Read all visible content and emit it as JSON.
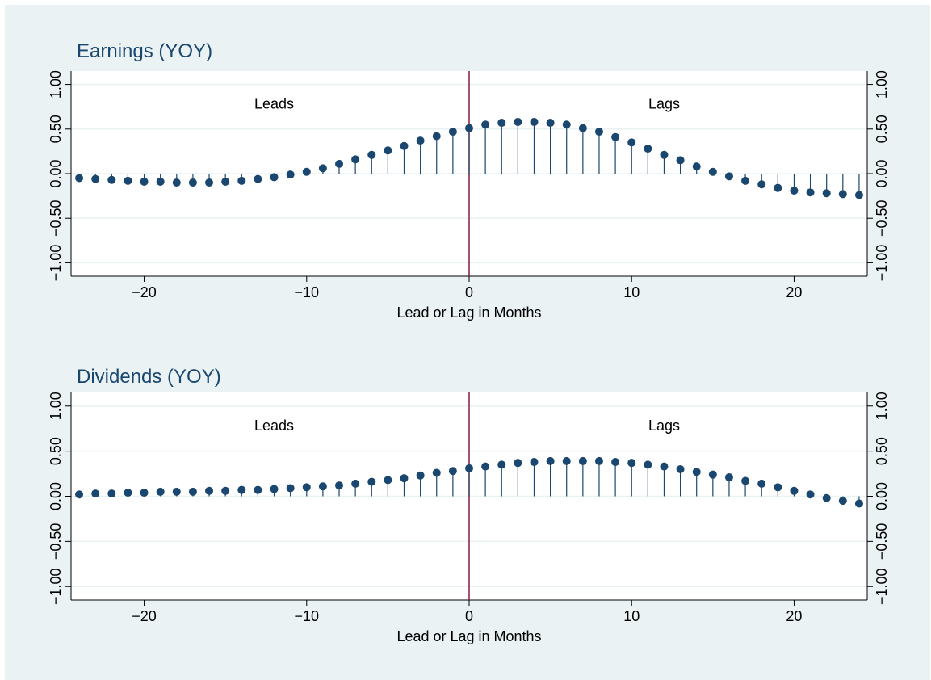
{
  "colors": {
    "background": "#eaf2f3",
    "plot_bg": "#ffffff",
    "marker": "#1a476f",
    "zero_line": "#8b1a3c",
    "grid": "#eaf2f3"
  },
  "chart_data": [
    {
      "type": "scatter",
      "style": "spike",
      "title": "Earnings (YOY)",
      "xlabel": "Lead or Lag in Months",
      "ylabel": "",
      "xlim": [
        -24.5,
        24.5
      ],
      "ylim": [
        -1.15,
        1.15
      ],
      "x_ticks": [
        -20,
        -10,
        0,
        10,
        20
      ],
      "x_tick_labels": [
        "−20",
        "−10",
        "0",
        "10",
        "20"
      ],
      "y_ticks": [
        -1,
        -0.5,
        0,
        0.5,
        1
      ],
      "y_tick_labels": [
        "−1.00",
        "−0.50",
        "0.00",
        "0.50",
        "1.00"
      ],
      "grid": true,
      "annotations": [
        {
          "text": "Leads",
          "x": -12,
          "y": 0.73
        },
        {
          "text": "Lags",
          "x": 12,
          "y": 0.73
        }
      ],
      "x": [
        -24,
        -23,
        -22,
        -21,
        -20,
        -19,
        -18,
        -17,
        -16,
        -15,
        -14,
        -13,
        -12,
        -11,
        -10,
        -9,
        -8,
        -7,
        -6,
        -5,
        -4,
        -3,
        -2,
        -1,
        0,
        1,
        2,
        3,
        4,
        5,
        6,
        7,
        8,
        9,
        10,
        11,
        12,
        13,
        14,
        15,
        16,
        17,
        18,
        19,
        20,
        21,
        22,
        23,
        24
      ],
      "y": [
        -0.05,
        -0.06,
        -0.07,
        -0.08,
        -0.09,
        -0.09,
        -0.1,
        -0.1,
        -0.1,
        -0.09,
        -0.08,
        -0.06,
        -0.04,
        -0.01,
        0.02,
        0.06,
        0.11,
        0.16,
        0.21,
        0.26,
        0.31,
        0.37,
        0.42,
        0.47,
        0.51,
        0.55,
        0.57,
        0.58,
        0.58,
        0.57,
        0.55,
        0.51,
        0.47,
        0.41,
        0.35,
        0.28,
        0.21,
        0.15,
        0.08,
        0.02,
        -0.03,
        -0.08,
        -0.12,
        -0.16,
        -0.19,
        -0.21,
        -0.22,
        -0.23,
        -0.24
      ]
    },
    {
      "type": "scatter",
      "style": "spike",
      "title": "Dividends (YOY)",
      "xlabel": "Lead or Lag in Months",
      "ylabel": "",
      "xlim": [
        -24.5,
        24.5
      ],
      "ylim": [
        -1.15,
        1.15
      ],
      "x_ticks": [
        -20,
        -10,
        0,
        10,
        20
      ],
      "x_tick_labels": [
        "−20",
        "−10",
        "0",
        "10",
        "20"
      ],
      "y_ticks": [
        -1,
        -0.5,
        0,
        0.5,
        1
      ],
      "y_tick_labels": [
        "−1.00",
        "−0.50",
        "0.00",
        "0.50",
        "1.00"
      ],
      "grid": true,
      "annotations": [
        {
          "text": "Leads",
          "x": -12,
          "y": 0.73
        },
        {
          "text": "Lags",
          "x": 12,
          "y": 0.73
        }
      ],
      "x": [
        -24,
        -23,
        -22,
        -21,
        -20,
        -19,
        -18,
        -17,
        -16,
        -15,
        -14,
        -13,
        -12,
        -11,
        -10,
        -9,
        -8,
        -7,
        -6,
        -5,
        -4,
        -3,
        -2,
        -1,
        0,
        1,
        2,
        3,
        4,
        5,
        6,
        7,
        8,
        9,
        10,
        11,
        12,
        13,
        14,
        15,
        16,
        17,
        18,
        19,
        20,
        21,
        22,
        23,
        24
      ],
      "y": [
        0.02,
        0.03,
        0.03,
        0.04,
        0.04,
        0.05,
        0.05,
        0.05,
        0.06,
        0.06,
        0.07,
        0.07,
        0.08,
        0.09,
        0.1,
        0.11,
        0.12,
        0.14,
        0.16,
        0.18,
        0.2,
        0.23,
        0.26,
        0.28,
        0.31,
        0.33,
        0.35,
        0.37,
        0.38,
        0.39,
        0.39,
        0.39,
        0.39,
        0.38,
        0.37,
        0.35,
        0.33,
        0.3,
        0.27,
        0.24,
        0.21,
        0.17,
        0.14,
        0.1,
        0.06,
        0.02,
        -0.02,
        -0.05,
        -0.08
      ]
    }
  ]
}
